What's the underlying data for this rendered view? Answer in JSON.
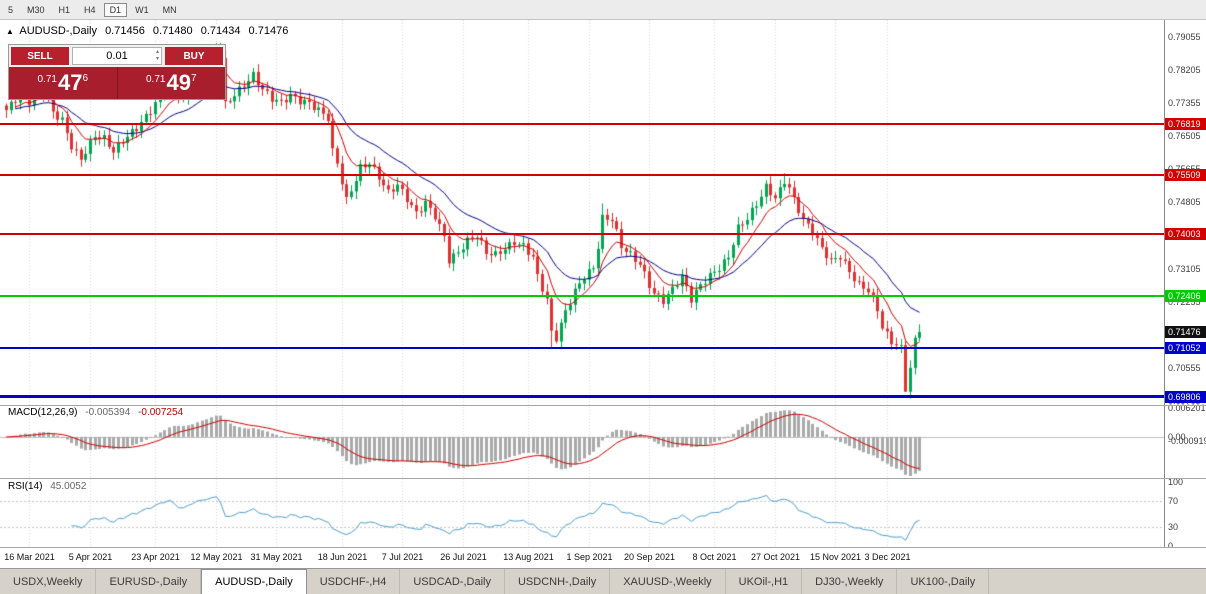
{
  "toolbar": {
    "timeframes": [
      "5",
      "M30",
      "H1",
      "H4",
      "D1",
      "W1",
      "MN"
    ],
    "active": "D1"
  },
  "header": {
    "collapse_icon": "▲",
    "title": "AUDUSD-,Daily",
    "open": "0.71456",
    "high": "0.71480",
    "low": "0.71434",
    "close": "0.71476"
  },
  "trade_panel": {
    "sell_label": "SELL",
    "buy_label": "BUY",
    "volume": "0.01",
    "volume_up_icon": "▴",
    "volume_down_icon": "▾",
    "sell_price": {
      "prefix": "0.71",
      "big": "47",
      "sup": "6"
    },
    "buy_price": {
      "prefix": "0.71",
      "big": "49",
      "sup": "7"
    },
    "colors": {
      "button": "#b8202e",
      "panel": "#a81e2c",
      "text": "#ffffff"
    }
  },
  "price_axis": {
    "labels": [
      "0.79055",
      "0.78205",
      "0.77355",
      "0.76505",
      "0.75655",
      "0.74805",
      "0.73955",
      "0.73105",
      "0.72255",
      "0.71405",
      "0.70555",
      "0.69705"
    ],
    "text_color": "#3c3c3c"
  },
  "hlines": [
    {
      "label": "0.76819",
      "price": 0.76819,
      "color": "#d40000",
      "width": 2
    },
    {
      "label": "0.75509",
      "price": 0.75509,
      "color": "#d40000",
      "width": 2
    },
    {
      "label": "0.74003",
      "price": 0.74003,
      "color": "#d40000",
      "width": 2
    },
    {
      "label": "0.72406",
      "price": 0.72406,
      "color": "#00cc00",
      "width": 2
    },
    {
      "label": "0.71052",
      "price": 0.71052,
      "color": "#0000cc",
      "width": 2
    },
    {
      "label": "0.69806",
      "price": 0.69806,
      "color": "#0000cc",
      "width": 3
    }
  ],
  "current_price": {
    "label": "0.71476",
    "price": 0.71476,
    "bg": "#111111"
  },
  "macd_pane": {
    "name": "MACD(12,26,9)",
    "main_value": "-0.005394",
    "signal_value": "-0.007254",
    "axis_labels": [
      "0.006201",
      "0.00",
      "-0.000919"
    ]
  },
  "rsi_pane": {
    "name": "RSI(14)",
    "value": "45.0052",
    "axis_labels": [
      "100",
      "70",
      "30",
      "0"
    ],
    "levels": [
      70,
      30
    ]
  },
  "date_axis": {
    "ticks": [
      {
        "i": 5,
        "label": "16 Mar 2021"
      },
      {
        "i": 18,
        "label": "5 Apr 2021"
      },
      {
        "i": 32,
        "label": "23 Apr 2021"
      },
      {
        "i": 45,
        "label": "12 May 2021"
      },
      {
        "i": 58,
        "label": "31 May 2021"
      },
      {
        "i": 72,
        "label": "18 Jun 2021"
      },
      {
        "i": 85,
        "label": "7 Jul 2021"
      },
      {
        "i": 98,
        "label": "26 Jul 2021"
      },
      {
        "i": 112,
        "label": "13 Aug 2021"
      },
      {
        "i": 125,
        "label": "1 Sep 2021"
      },
      {
        "i": 138,
        "label": "20 Sep 2021"
      },
      {
        "i": 152,
        "label": "8 Oct 2021"
      },
      {
        "i": 165,
        "label": "27 Oct 2021"
      },
      {
        "i": 178,
        "label": "15 Nov 2021"
      },
      {
        "i": 189,
        "label": "3 Dec 2021"
      }
    ]
  },
  "tabs": {
    "items": [
      "USDX,Weekly",
      "EURUSD-,Daily",
      "AUDUSD-,Daily",
      "USDCHF-,H4",
      "USDCAD-,Daily",
      "USDCNH-,Daily",
      "XAUUSD-,Weekly",
      "UKOil-,H1",
      "DJ30-,Weekly",
      "UK100-,Daily"
    ],
    "active_index": 2
  },
  "chart_data": {
    "type": "candlestick",
    "symbol": "AUDUSD-",
    "timeframe": "Daily",
    "n": 197,
    "noise": 0.0009,
    "price_range": {
      "max": 0.795,
      "min": 0.6962
    },
    "anchors": [
      [
        0,
        0.7718
      ],
      [
        2,
        0.7746
      ],
      [
        4,
        0.7754
      ],
      [
        5,
        0.774
      ],
      [
        6,
        0.7756
      ],
      [
        8,
        0.7768
      ],
      [
        10,
        0.7712
      ],
      [
        12,
        0.7692
      ],
      [
        14,
        0.7625
      ],
      [
        16,
        0.7592
      ],
      [
        18,
        0.7632
      ],
      [
        19,
        0.7652
      ],
      [
        21,
        0.7645
      ],
      [
        23,
        0.7612
      ],
      [
        25,
        0.764
      ],
      [
        28,
        0.7672
      ],
      [
        31,
        0.7716
      ],
      [
        33,
        0.7756
      ],
      [
        35,
        0.779
      ],
      [
        36,
        0.7772
      ],
      [
        38,
        0.7746
      ],
      [
        40,
        0.78
      ],
      [
        42,
        0.7836
      ],
      [
        44,
        0.7862
      ],
      [
        45,
        0.7886
      ],
      [
        46,
        0.7858
      ],
      [
        47,
        0.7732
      ],
      [
        49,
        0.7758
      ],
      [
        51,
        0.7782
      ],
      [
        53,
        0.7808
      ],
      [
        55,
        0.7772
      ],
      [
        57,
        0.7748
      ],
      [
        59,
        0.7738
      ],
      [
        61,
        0.7756
      ],
      [
        63,
        0.7742
      ],
      [
        65,
        0.7736
      ],
      [
        67,
        0.7718
      ],
      [
        69,
        0.7698
      ],
      [
        70,
        0.7612
      ],
      [
        71,
        0.7582
      ],
      [
        73,
        0.7486
      ],
      [
        74,
        0.7512
      ],
      [
        76,
        0.757
      ],
      [
        78,
        0.7582
      ],
      [
        80,
        0.7546
      ],
      [
        82,
        0.7506
      ],
      [
        84,
        0.7526
      ],
      [
        86,
        0.749
      ],
      [
        88,
        0.7452
      ],
      [
        90,
        0.748
      ],
      [
        92,
        0.7446
      ],
      [
        94,
        0.7392
      ],
      [
        95,
        0.7332
      ],
      [
        97,
        0.7352
      ],
      [
        99,
        0.7382
      ],
      [
        101,
        0.7396
      ],
      [
        103,
        0.7352
      ],
      [
        105,
        0.7346
      ],
      [
        107,
        0.7362
      ],
      [
        109,
        0.7378
      ],
      [
        111,
        0.7368
      ],
      [
        113,
        0.734
      ],
      [
        114,
        0.729
      ],
      [
        115,
        0.726
      ],
      [
        116,
        0.723
      ],
      [
        117,
        0.7146
      ],
      [
        118,
        0.7132
      ],
      [
        120,
        0.72
      ],
      [
        122,
        0.7252
      ],
      [
        124,
        0.729
      ],
      [
        126,
        0.7312
      ],
      [
        127,
        0.7368
      ],
      [
        128,
        0.744
      ],
      [
        130,
        0.7438
      ],
      [
        132,
        0.7368
      ],
      [
        134,
        0.7346
      ],
      [
        136,
        0.7322
      ],
      [
        138,
        0.7268
      ],
      [
        139,
        0.7246
      ],
      [
        141,
        0.7228
      ],
      [
        143,
        0.7258
      ],
      [
        145,
        0.729
      ],
      [
        147,
        0.7232
      ],
      [
        149,
        0.7268
      ],
      [
        151,
        0.7292
      ],
      [
        153,
        0.7312
      ],
      [
        155,
        0.734
      ],
      [
        157,
        0.7415
      ],
      [
        159,
        0.744
      ],
      [
        161,
        0.7476
      ],
      [
        163,
        0.752
      ],
      [
        165,
        0.7492
      ],
      [
        166,
        0.7512
      ],
      [
        167,
        0.7536
      ],
      [
        168,
        0.7518
      ],
      [
        169,
        0.7488
      ],
      [
        171,
        0.7436
      ],
      [
        173,
        0.7406
      ],
      [
        175,
        0.7362
      ],
      [
        177,
        0.733
      ],
      [
        179,
        0.7342
      ],
      [
        181,
        0.7302
      ],
      [
        183,
        0.7268
      ],
      [
        185,
        0.7255
      ],
      [
        187,
        0.7205
      ],
      [
        188,
        0.716
      ],
      [
        189,
        0.714
      ],
      [
        190,
        0.7122
      ],
      [
        191,
        0.7115
      ],
      [
        192,
        0.7105
      ],
      [
        193,
        0.7001
      ],
      [
        194,
        0.7055
      ],
      [
        195,
        0.7125
      ],
      [
        196,
        0.7147
      ]
    ],
    "wick_overrides": {
      "45": {
        "high": 0.7891
      },
      "117": {
        "low": 0.7106
      },
      "128": {
        "high": 0.7478
      },
      "167": {
        "high": 0.7556
      },
      "193": {
        "low": 0.6993
      }
    },
    "indicators": {
      "ma_fast": {
        "period": 8,
        "color": "#d40000"
      },
      "ma_slow": {
        "period": 21,
        "color": "#00008b"
      },
      "macd": {
        "fast": 12,
        "slow": 26,
        "signal": 9
      },
      "rsi": {
        "period": 14
      }
    },
    "colors": {
      "up": "#00a651",
      "down": "#e03131",
      "grid": "#d9d9d9",
      "macd_hist": "#a9a9a9",
      "macd_signal": "#cc0000",
      "zero_line": "#bfbfbf",
      "rsi_line": "#4f9ecf",
      "rsi_level": "#c8c8c8"
    }
  }
}
